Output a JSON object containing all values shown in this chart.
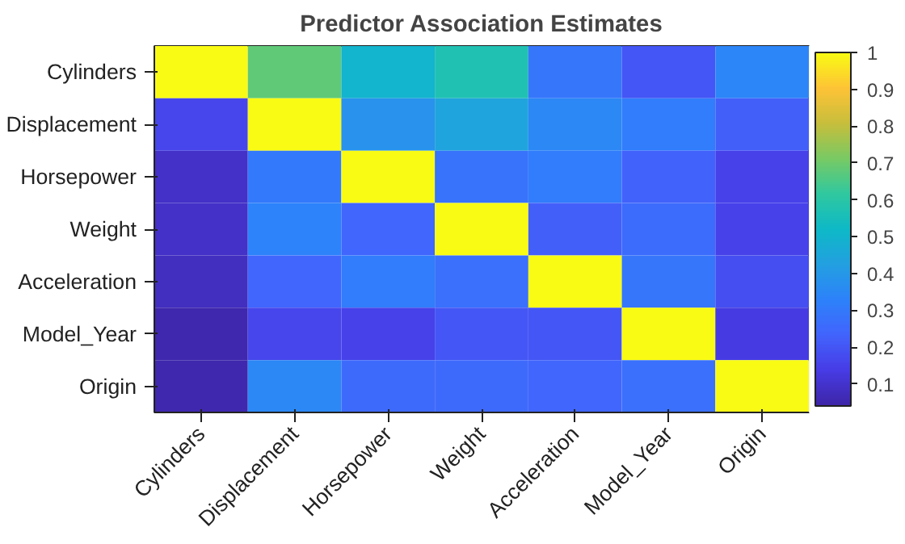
{
  "chart_data": {
    "type": "heatmap",
    "title": "Predictor Association Estimates",
    "categories": [
      "Cylinders",
      "Displacement",
      "Horsepower",
      "Weight",
      "Acceleration",
      "Model_Year",
      "Origin"
    ],
    "y_categories": [
      "Cylinders",
      "Displacement",
      "Horsepower",
      "Weight",
      "Acceleration",
      "Model_Year",
      "Origin"
    ],
    "cells": [
      [
        1,
        0.68,
        0.5,
        0.57,
        0.29,
        0.2,
        0.34
      ],
      [
        0.16,
        1,
        0.38,
        0.44,
        0.35,
        0.31,
        0.22
      ],
      [
        0.09,
        0.3,
        1,
        0.28,
        0.31,
        0.23,
        0.15
      ],
      [
        0.09,
        0.33,
        0.24,
        1,
        0.22,
        0.26,
        0.15
      ],
      [
        0.08,
        0.24,
        0.31,
        0.27,
        1,
        0.29,
        0.18
      ],
      [
        0.05,
        0.16,
        0.15,
        0.2,
        0.2,
        1,
        0.13
      ],
      [
        0.05,
        0.35,
        0.25,
        0.25,
        0.24,
        0.27,
        1
      ]
    ],
    "clim": [
      0.04,
      1
    ],
    "cticks": [
      0.1,
      0.2,
      0.3,
      0.4,
      0.5,
      0.6,
      0.7,
      0.8,
      0.9,
      1
    ]
  }
}
